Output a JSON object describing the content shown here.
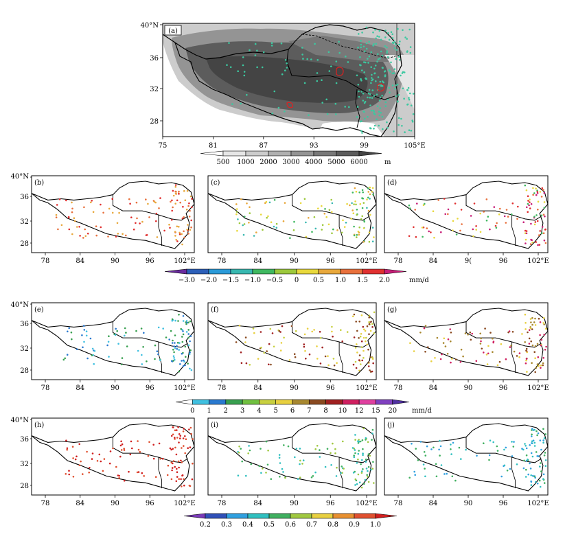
{
  "figure": {
    "panel_a": {
      "label": "(a)",
      "x_ticks": [
        "75",
        "81",
        "87",
        "93",
        "99",
        "105°E"
      ],
      "y_ticks": [
        "40°N",
        "36",
        "32",
        "28"
      ],
      "colorbar": {
        "labels": [
          "500",
          "1000",
          "2000",
          "3000",
          "4000",
          "5000",
          "6000"
        ],
        "unit": "m",
        "colors": [
          "#ffffff",
          "#e6e6e6",
          "#cccccc",
          "#b0b0b0",
          "#949494",
          "#787878",
          "#5c5c5c",
          "#444444"
        ]
      },
      "station_color": "#3cc8a0",
      "highlight_color": "#e02020"
    },
    "small_x_ticks": [
      "78",
      "84",
      "90",
      "96",
      "102°E"
    ],
    "small_x_ticks_d": [
      "78",
      "84",
      "9(",
      "96",
      "102°E"
    ],
    "small_y_ticks": [
      "40°N",
      "36",
      "32",
      "28"
    ],
    "row1": {
      "labels": [
        "(b)",
        "(c)",
        "(d)"
      ],
      "colorbar": {
        "labels": [
          "−3.0",
          "−2.0",
          "−1.5",
          "−1.0",
          "−0.5",
          "0",
          "0.5",
          "1.0",
          "1.5",
          "2.0"
        ],
        "unit": "mm/d",
        "colors": [
          "#6a2c9e",
          "#2c5fb8",
          "#2a9ad8",
          "#38b8b0",
          "#3fb860",
          "#9cc83c",
          "#e8d83c",
          "#e8a83c",
          "#e8703c",
          "#e03030",
          "#c81e78"
        ]
      }
    },
    "row2": {
      "labels": [
        "(e)",
        "(f)",
        "(g)"
      ],
      "colorbar": {
        "labels": [
          "0",
          "1",
          "2",
          "3",
          "4",
          "5",
          "6",
          "7",
          "8",
          "10",
          "12",
          "15",
          "20"
        ],
        "unit": "mm/d",
        "colors": [
          "#ffffff",
          "#40c0e0",
          "#2a7ad0",
          "#38a050",
          "#70c040",
          "#c8d040",
          "#e8d040",
          "#a88830",
          "#8a4a20",
          "#a02020",
          "#d02060",
          "#e040a0",
          "#8040c0",
          "#5030a0"
        ]
      }
    },
    "row3": {
      "labels": [
        "(h)",
        "(i)",
        "(j)"
      ],
      "colorbar": {
        "labels": [
          "0.2",
          "0.3",
          "0.4",
          "0.5",
          "0.6",
          "0.7",
          "0.8",
          "0.9",
          "1.0"
        ],
        "colors": [
          "#7a3ab8",
          "#3050b8",
          "#30a0e0",
          "#30c0c0",
          "#40b060",
          "#a0c840",
          "#e8d040",
          "#e89030",
          "#e05030",
          "#d02020"
        ]
      }
    }
  }
}
